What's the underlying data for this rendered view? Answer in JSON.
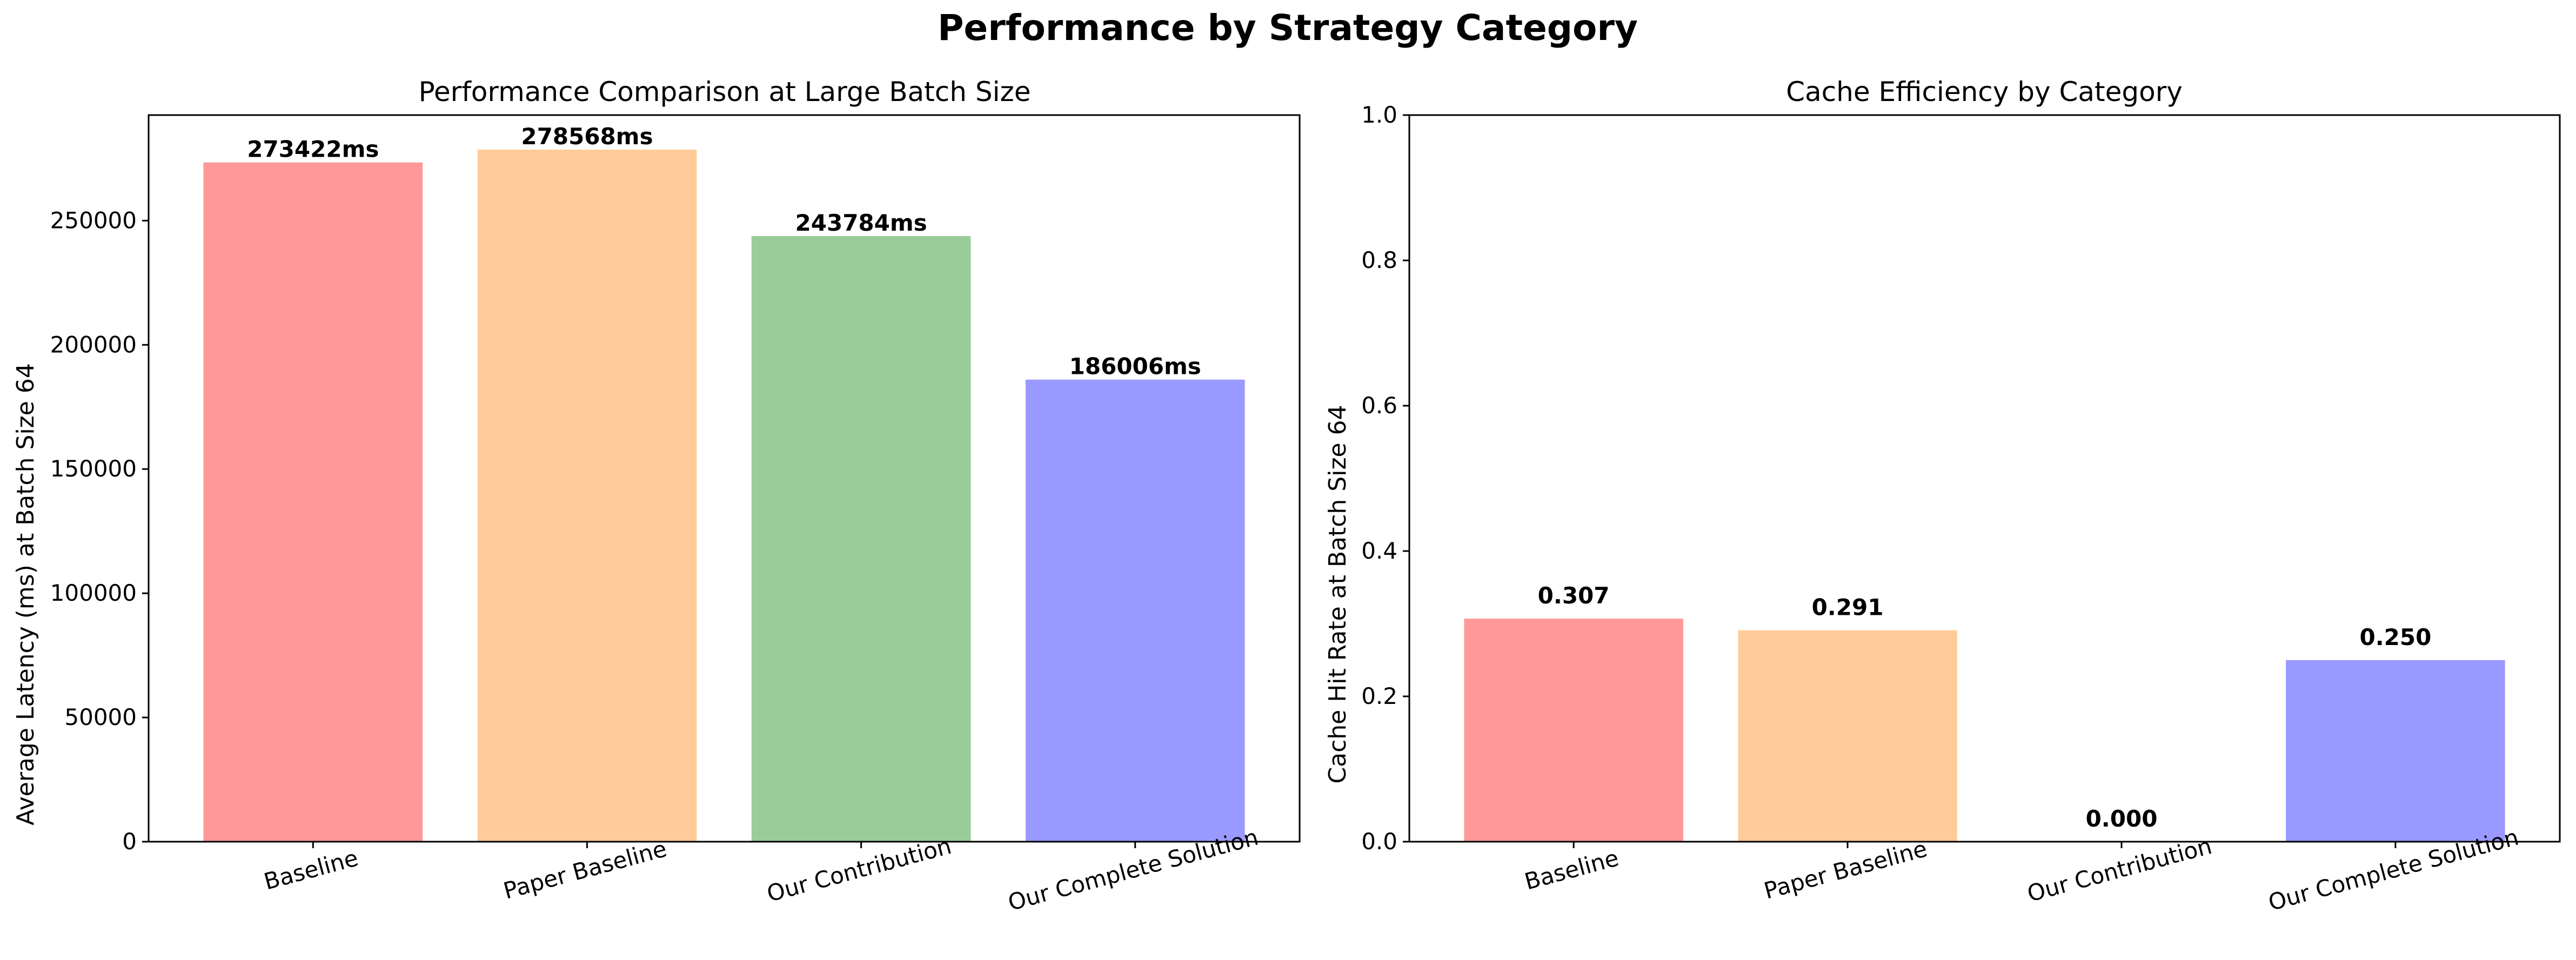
{
  "figure": {
    "suptitle": "Performance by Strategy Category"
  },
  "chart_data": [
    {
      "type": "bar",
      "title": "Performance Comparison at Large Batch Size",
      "xlabel": "",
      "ylabel": "Average Latency (ms) at Batch Size 64",
      "categories": [
        "Baseline",
        "Paper Baseline",
        "Our Contribution",
        "Our Complete Solution"
      ],
      "values": [
        273422,
        278568,
        243784,
        186006
      ],
      "value_labels": [
        "273422ms",
        "278568ms",
        "243784ms",
        "186006ms"
      ],
      "colors": [
        "#ff9999",
        "#ffcc99",
        "#99cc99",
        "#9999ff"
      ],
      "ylim": [
        0,
        292496
      ],
      "yticks": [
        0,
        50000,
        100000,
        150000,
        200000,
        250000
      ],
      "ytick_labels": [
        "0",
        "50000",
        "100000",
        "150000",
        "200000",
        "250000"
      ],
      "grid": false,
      "xtick_rotation": -15
    },
    {
      "type": "bar",
      "title": "Cache Efficiency by Category",
      "xlabel": "",
      "ylabel": "Cache Hit Rate at Batch Size 64",
      "categories": [
        "Baseline",
        "Paper Baseline",
        "Our Contribution",
        "Our Complete Solution"
      ],
      "values": [
        0.307,
        0.291,
        0.0,
        0.25
      ],
      "value_labels": [
        "0.307",
        "0.291",
        "0.000",
        "0.250"
      ],
      "colors": [
        "#ff9999",
        "#ffcc99",
        "#99cc99",
        "#9999ff"
      ],
      "ylim": [
        0,
        1.0
      ],
      "yticks": [
        0,
        0.2,
        0.4,
        0.6,
        0.8,
        1.0
      ],
      "ytick_labels": [
        "0.0",
        "0.2",
        "0.4",
        "0.6",
        "0.8",
        "1.0"
      ],
      "grid": false,
      "xtick_rotation": -15
    }
  ]
}
